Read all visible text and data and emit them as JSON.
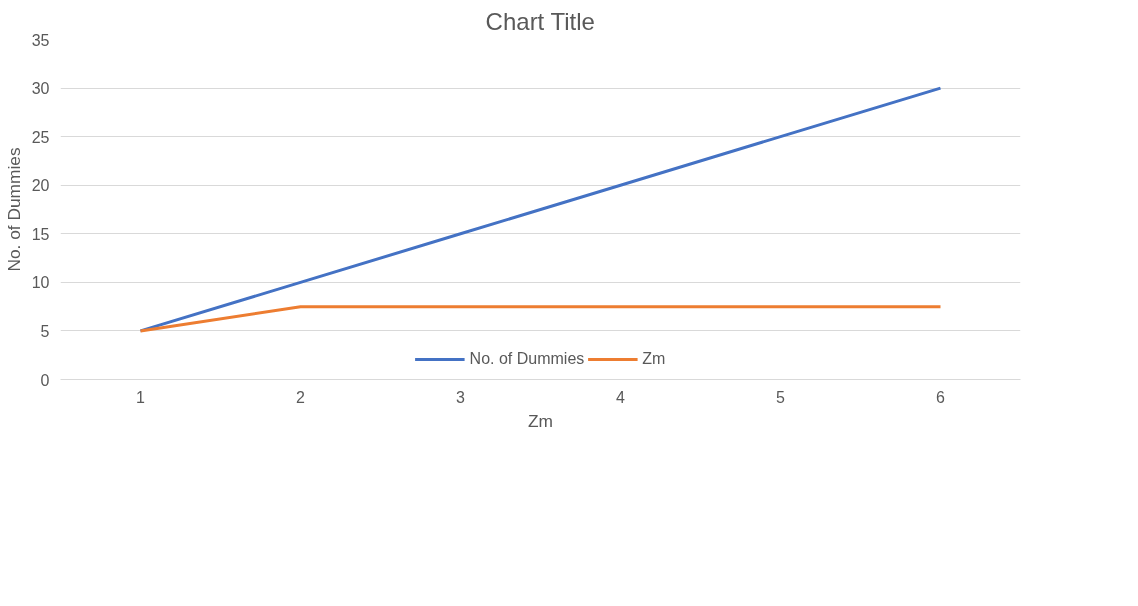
{
  "chart_data": {
    "type": "line",
    "title": "Chart Title",
    "xlabel": "Zm",
    "ylabel": "No. of Dummies",
    "categories": [
      "1",
      "2",
      "3",
      "4",
      "5",
      "6"
    ],
    "series": [
      {
        "name": "No. of Dummies",
        "color": "#4472c4",
        "values": [
          5,
          10,
          15,
          20,
          25,
          30
        ]
      },
      {
        "name": "Zm",
        "color": "#ed7d31",
        "values": [
          5,
          7.5,
          7.5,
          7.5,
          7.5,
          7.5
        ]
      }
    ],
    "ylim": [
      0,
      35
    ],
    "yticks": [
      0,
      5,
      10,
      15,
      20,
      25,
      30,
      35
    ],
    "grid": "y",
    "legend": "bottom",
    "marker": "none",
    "line_style": "solid"
  }
}
